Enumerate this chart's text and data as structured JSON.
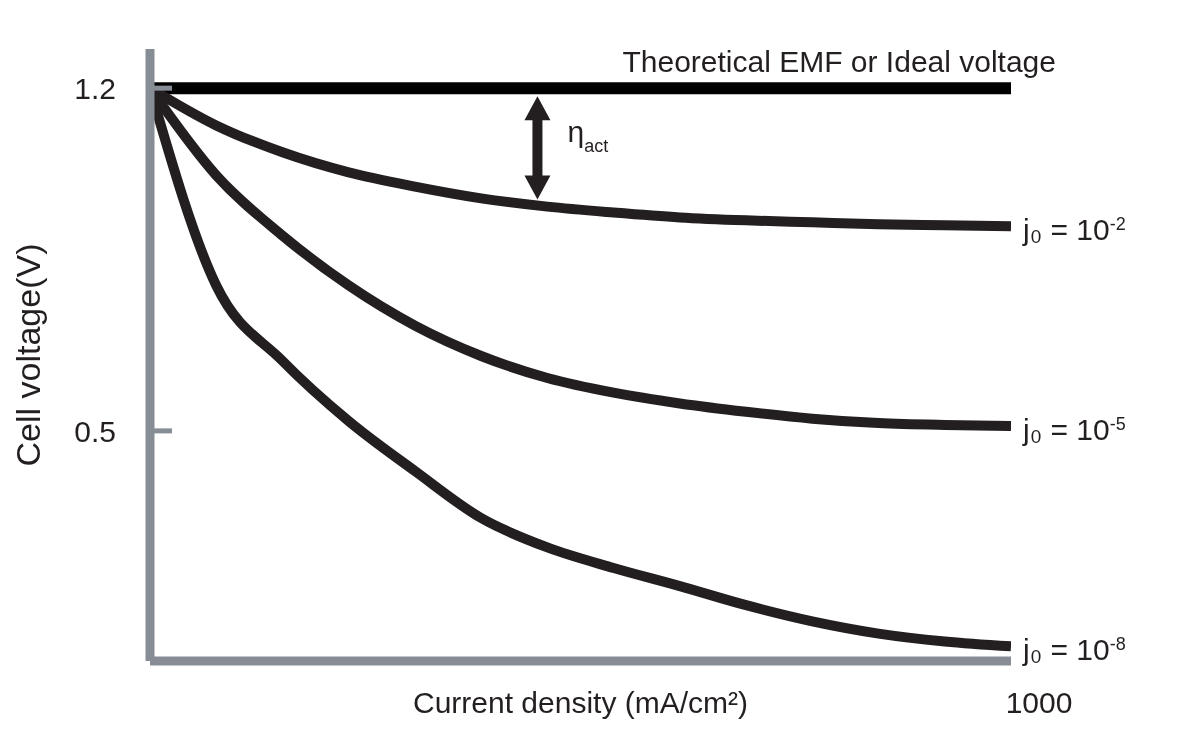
{
  "chart_data": {
    "type": "line",
    "xlabel": "Current density (mA/cm²)",
    "ylabel": "Cell voltage(V)",
    "ylim": [
      0.03,
      1.28
    ],
    "yticks": [
      0.5,
      1.2
    ],
    "categories": [
      null,
      null,
      null,
      null,
      null,
      null,
      null,
      null,
      null,
      null,
      null,
      null,
      null,
      null
    ],
    "series": [
      {
        "name": "j₀ = 10$^{-2}$",
        "color": "#231f20",
        "values": [
          1.2,
          1.124,
          1.069,
          1.028,
          0.999,
          0.975,
          0.958,
          0.946,
          0.936,
          0.93,
          0.926,
          0.922,
          0.92,
          0.918
        ]
      },
      {
        "name": "j₀ = 10$^{-5}$",
        "color": "#231f20",
        "values": [
          1.2,
          1.022,
          0.899,
          0.797,
          0.715,
          0.653,
          0.608,
          0.578,
          0.556,
          0.539,
          0.525,
          0.516,
          0.512,
          0.51
        ]
      },
      {
        "name": "j₀ = 10$^{-8}$",
        "color": "#231f20",
        "values": [
          1.2,
          0.797,
          0.643,
          0.52,
          0.418,
          0.322,
          0.262,
          0.22,
          0.183,
          0.144,
          0.111,
          0.086,
          0.07,
          0.06
        ]
      }
    ],
    "ref_lines": [
      {
        "axis": "y",
        "value": 1.2,
        "label": "Theoretical EMF or Ideal voltage",
        "color": "#000000"
      }
    ],
    "annotations": [
      "η$_{act}$",
      "1000"
    ],
    "grid": false,
    "legend": false,
    "marker": "none",
    "line_style": "solid"
  }
}
